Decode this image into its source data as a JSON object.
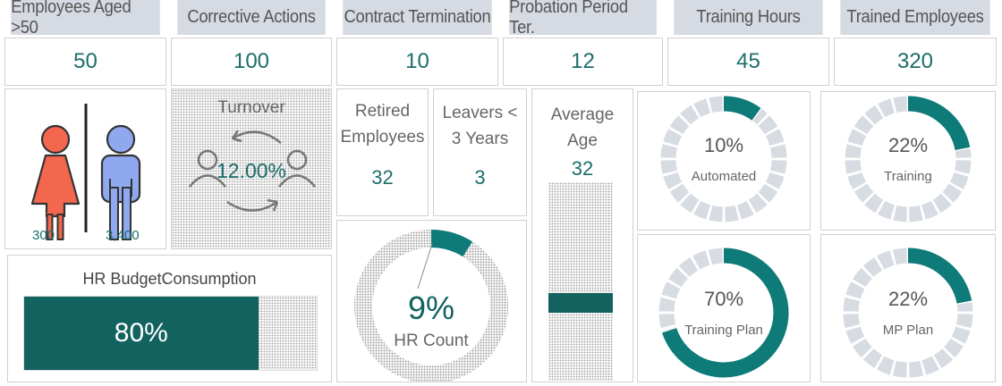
{
  "kpis": [
    {
      "label": "Employees Aged >50",
      "value": "50"
    },
    {
      "label": "Corrective Actions",
      "value": "100"
    },
    {
      "label": "Contract Termination",
      "value": "10"
    },
    {
      "label": "Probation Period Ter.",
      "value": "12"
    },
    {
      "label": "Training Hours",
      "value": "45"
    },
    {
      "label": "Trained Employees",
      "value": "320"
    }
  ],
  "gender": {
    "female": "300",
    "male": "3,400"
  },
  "turnover": {
    "title": "Turnover",
    "value": "12.00%"
  },
  "retired": {
    "title_line1": "Retired",
    "title_line2": "Employees",
    "value": "32"
  },
  "leavers": {
    "title_line1": "Leavers <",
    "title_line2": "3 Years",
    "value": "3"
  },
  "average_age": {
    "title_line1": "Average",
    "title_line2": "Age",
    "value": "32"
  },
  "budget": {
    "title": "HR BudgetConsumption",
    "value_label": "80%"
  },
  "hr_count": {
    "value_label": "9%",
    "title": "HR Count"
  },
  "colors": {
    "accent": "#0e7b79",
    "track": "#d7dce3",
    "dark_teal": "#12625f",
    "female": "#f2674e",
    "male": "#8fa8f0"
  },
  "chart_data": [
    {
      "type": "pie",
      "title": "Automated",
      "values": [
        10,
        90
      ],
      "value_label": "10%"
    },
    {
      "type": "pie",
      "title": "Training",
      "values": [
        22,
        78
      ],
      "value_label": "22%"
    },
    {
      "type": "pie",
      "title": "Training Plan",
      "values": [
        70,
        30
      ],
      "value_label": "70%"
    },
    {
      "type": "pie",
      "title": "MP Plan",
      "values": [
        22,
        78
      ],
      "value_label": "22%"
    },
    {
      "type": "pie",
      "title": "HR Count",
      "values": [
        9,
        91
      ],
      "value_label": "9%"
    },
    {
      "type": "bar",
      "title": "HR BudgetConsumption",
      "values": [
        80
      ],
      "max": 100,
      "value_label": "80%"
    }
  ]
}
